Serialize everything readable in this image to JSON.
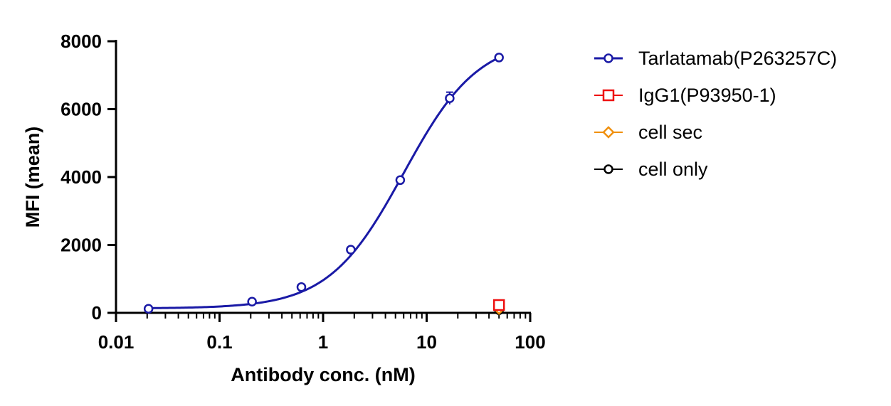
{
  "chart_data": {
    "type": "scatter",
    "xlabel": "Antibody conc. (nM)",
    "ylabel": "MFI (mean)",
    "xscale": "log",
    "xlim": [
      0.01,
      100
    ],
    "ylim": [
      0,
      8000
    ],
    "x_ticks": [
      0.01,
      0.1,
      1,
      10,
      100
    ],
    "x_tick_labels": [
      "0.01",
      "0.1",
      "1",
      "10",
      "100"
    ],
    "y_ticks": [
      0,
      2000,
      4000,
      6000,
      8000
    ],
    "y_tick_labels": [
      "0",
      "2000",
      "4000",
      "6000",
      "8000"
    ],
    "legend_position": "right",
    "series": [
      {
        "name": "Tarlatamab(P263257C)",
        "color": "#1a1aa6",
        "marker": "circle",
        "fit_curve": true,
        "x": [
          0.0206,
          0.206,
          0.617,
          1.85,
          5.56,
          16.7,
          50
        ],
        "y": [
          120,
          330,
          760,
          1860,
          3910,
          6320,
          7520
        ],
        "error": [
          0,
          0,
          0,
          0,
          0,
          180,
          0
        ]
      },
      {
        "name": "IgG1(P93950-1)",
        "color": "#ee1111",
        "marker": "square",
        "fit_curve": false,
        "x": [
          50
        ],
        "y": [
          230
        ]
      },
      {
        "name": "cell sec",
        "color": "#f0900f",
        "marker": "diamond",
        "fit_curve": false,
        "x": [
          50
        ],
        "y": [
          120
        ]
      },
      {
        "name": "cell only",
        "color": "#000000",
        "marker": "circle",
        "fit_curve": false,
        "x": [
          50
        ],
        "y": [
          80
        ]
      }
    ],
    "fit": {
      "bottom": 130,
      "top": 8100,
      "ec50": 6.0,
      "hill": 1.2
    }
  }
}
